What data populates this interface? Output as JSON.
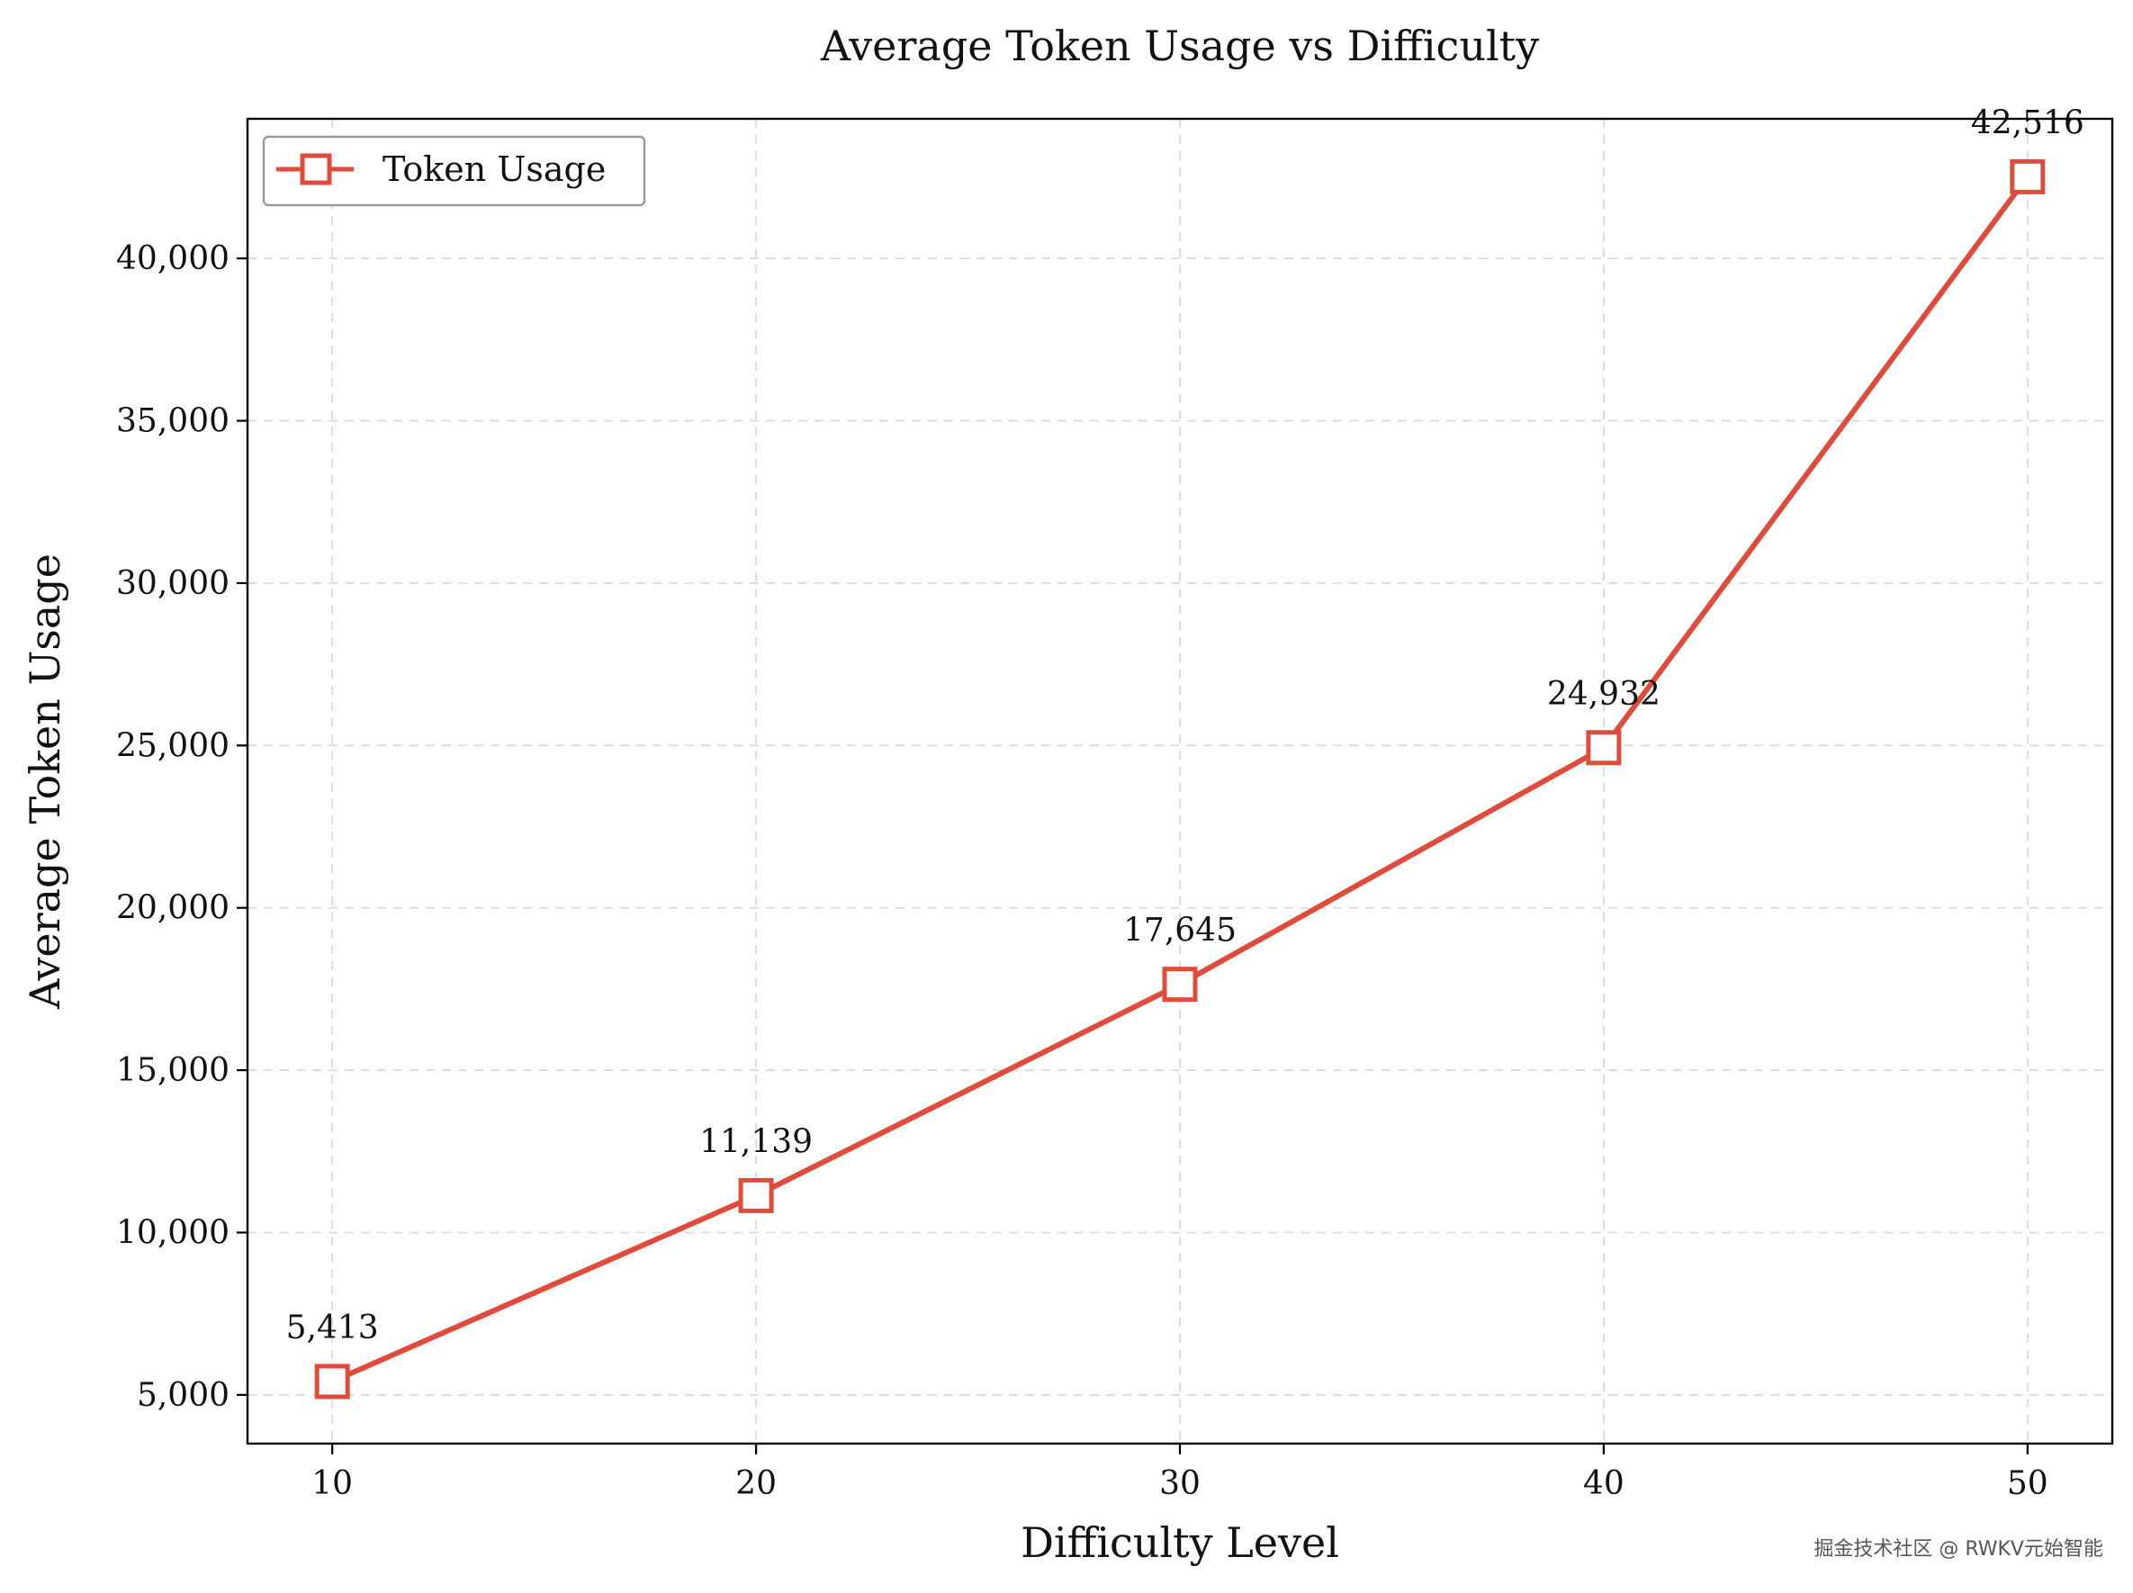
{
  "colors": {
    "series": "#e04b3c",
    "grid": "#d9d9d9",
    "frame": "#000000"
  },
  "watermark": "掘金技术社区 @ RWKV元始智能",
  "chart_data": {
    "type": "line",
    "title": "Average Token Usage vs Difficulty",
    "xlabel": "Difficulty Level",
    "ylabel": "Average Token Usage",
    "x": [
      10,
      20,
      30,
      40,
      50
    ],
    "xlim": [
      8,
      52
    ],
    "ylim": [
      3500,
      44300
    ],
    "xticks": [
      10,
      20,
      30,
      40,
      50
    ],
    "xtick_labels": [
      "10",
      "20",
      "30",
      "40",
      "50"
    ],
    "yticks": [
      5000,
      10000,
      15000,
      20000,
      25000,
      30000,
      35000,
      40000
    ],
    "ytick_labels": [
      "5,000",
      "10,000",
      "15,000",
      "20,000",
      "25,000",
      "30,000",
      "35,000",
      "40,000"
    ],
    "grid": true,
    "legend": "upper-left",
    "series": [
      {
        "name": "Token Usage",
        "marker": "square",
        "values": [
          5413,
          11139,
          17645,
          24932,
          42516
        ],
        "data_labels": [
          "5,413",
          "11,139",
          "17,645",
          "24,932",
          "42,516"
        ]
      }
    ]
  }
}
